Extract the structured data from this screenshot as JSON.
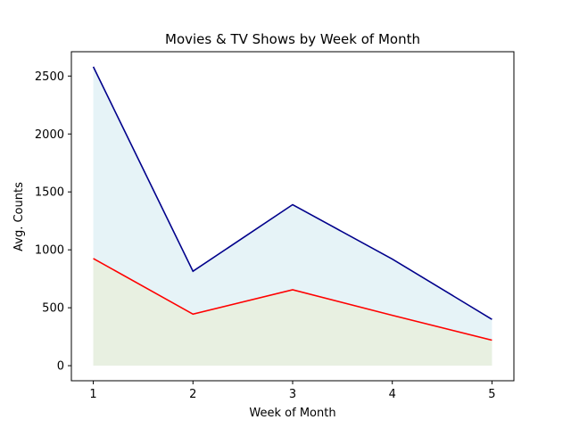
{
  "chart_data": {
    "type": "area",
    "title": "Movies & TV Shows by Week of Month",
    "xlabel": "Week of Month",
    "ylabel": "Avg. Counts",
    "x": [
      1,
      2,
      3,
      4,
      5
    ],
    "xlim": [
      0.78,
      5.22
    ],
    "ylim": [
      -130,
      2710
    ],
    "xticks": [
      "1",
      "2",
      "3",
      "4",
      "5"
    ],
    "yticks": [
      "0",
      "500",
      "1000",
      "1500",
      "2000",
      "2500"
    ],
    "grid": false,
    "legend": "none",
    "series": [
      {
        "values": [
          2580,
          815,
          1390,
          920,
          400
        ],
        "line_color": "#00008b",
        "fill_color": "#add8e6",
        "fill_opacity": 0.3
      },
      {
        "values": [
          925,
          445,
          655,
          435,
          220
        ],
        "line_color": "#ff0000",
        "fill_color": "#f0e68c",
        "fill_opacity": 0.2
      }
    ]
  }
}
